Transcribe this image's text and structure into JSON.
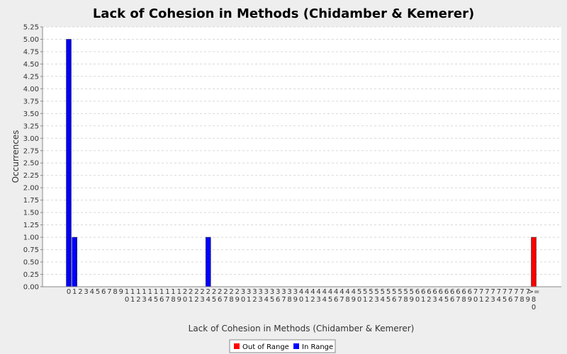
{
  "chart_data": {
    "type": "bar",
    "title": "Lack of Cohesion in Methods (Chidamber & Kemerer)",
    "xlabel": "Lack of Cohesion in Methods (Chidamber & Kemerer)",
    "ylabel": "Occurrences",
    "ylim": [
      0,
      5.25
    ],
    "ytick_step": 0.25,
    "grid": true,
    "legend_placement": "bottom-center",
    "categories": [
      "0",
      "1",
      "2",
      "3",
      "4",
      "5",
      "6",
      "7",
      "8",
      "9",
      "10",
      "11",
      "12",
      "13",
      "14",
      "15",
      "16",
      "17",
      "18",
      "19",
      "20",
      "21",
      "22",
      "23",
      "24",
      "25",
      "26",
      "27",
      "28",
      "29",
      "30",
      "31",
      "32",
      "33",
      "34",
      "35",
      "36",
      "37",
      "38",
      "39",
      "40",
      "41",
      "42",
      "43",
      "44",
      "45",
      "46",
      "47",
      "48",
      "49",
      "50",
      "51",
      "52",
      "53",
      "54",
      "55",
      "56",
      "57",
      "58",
      "59",
      "60",
      "61",
      "62",
      "63",
      "64",
      "65",
      "66",
      "67",
      "68",
      "69",
      "70",
      "71",
      "72",
      "73",
      "74",
      "75",
      "76",
      "77",
      "78",
      "79",
      ">=80"
    ],
    "series": [
      {
        "name": "Out of Range",
        "color": "#ff0000",
        "values": [
          0,
          0,
          0,
          0,
          0,
          0,
          0,
          0,
          0,
          0,
          0,
          0,
          0,
          0,
          0,
          0,
          0,
          0,
          0,
          0,
          0,
          0,
          0,
          0,
          0,
          0,
          0,
          0,
          0,
          0,
          0,
          0,
          0,
          0,
          0,
          0,
          0,
          0,
          0,
          0,
          0,
          0,
          0,
          0,
          0,
          0,
          0,
          0,
          0,
          0,
          0,
          0,
          0,
          0,
          0,
          0,
          0,
          0,
          0,
          0,
          0,
          0,
          0,
          0,
          0,
          0,
          0,
          0,
          0,
          0,
          0,
          0,
          0,
          0,
          0,
          0,
          0,
          0,
          0,
          0,
          1
        ]
      },
      {
        "name": "In Range",
        "color": "#0000ff",
        "values": [
          5,
          1,
          0,
          0,
          0,
          0,
          0,
          0,
          0,
          0,
          0,
          0,
          0,
          0,
          0,
          0,
          0,
          0,
          0,
          0,
          0,
          0,
          0,
          0,
          1,
          0,
          0,
          0,
          0,
          0,
          0,
          0,
          0,
          0,
          0,
          0,
          0,
          0,
          0,
          0,
          0,
          0,
          0,
          0,
          0,
          0,
          0,
          0,
          0,
          0,
          0,
          0,
          0,
          0,
          0,
          0,
          0,
          0,
          0,
          0,
          0,
          0,
          0,
          0,
          0,
          0,
          0,
          0,
          0,
          0,
          0,
          0,
          0,
          0,
          0,
          0,
          0,
          0,
          0,
          0,
          0
        ]
      }
    ]
  }
}
